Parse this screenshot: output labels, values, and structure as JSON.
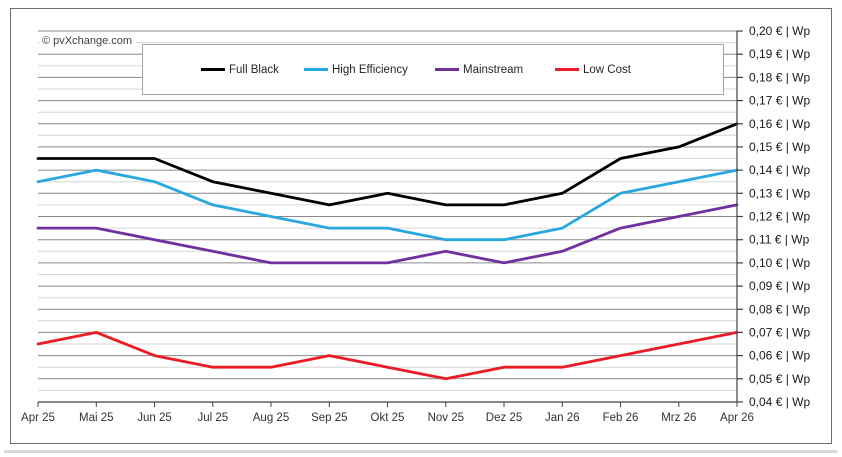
{
  "page": {
    "copyright": "© pvXchange.com"
  },
  "chart_data": {
    "type": "line",
    "title": "",
    "xlabel": "",
    "ylabel": "€ | Wp",
    "categories": [
      "Apr 25",
      "Mai 25",
      "Jun 25",
      "Jul 25",
      "Aug 25",
      "Sep 25",
      "Okt 25",
      "Nov 25",
      "Dez 25",
      "Jan 26",
      "Feb 26",
      "Mrz 26",
      "Apr 26"
    ],
    "series": [
      {
        "name": "Full Black",
        "color": "#000000",
        "values": [
          0.145,
          0.145,
          0.145,
          0.135,
          0.13,
          0.125,
          0.13,
          0.125,
          0.125,
          0.13,
          0.145,
          0.15,
          0.16
        ]
      },
      {
        "name": "High Efficiency",
        "color": "#29A8E0",
        "values": [
          0.135,
          0.14,
          0.135,
          0.125,
          0.12,
          0.115,
          0.115,
          0.11,
          0.11,
          0.115,
          0.13,
          0.135,
          0.14
        ]
      },
      {
        "name": "Mainstream",
        "color": "#7030A0",
        "values": [
          0.115,
          0.115,
          0.11,
          0.105,
          0.1,
          0.1,
          0.1,
          0.105,
          0.1,
          0.105,
          0.115,
          0.12,
          0.125
        ]
      },
      {
        "name": "Low Cost",
        "color": "#ED1C24",
        "values": [
          0.065,
          0.07,
          0.06,
          0.055,
          0.055,
          0.06,
          0.055,
          0.05,
          0.055,
          0.055,
          0.06,
          0.065,
          0.07
        ]
      }
    ],
    "ylim": [
      0.04,
      0.2
    ],
    "y_major_step": 0.01,
    "y_minor_step": 0.005,
    "y_tick_labels": [
      "0,20 € | Wp",
      "0,19 € | Wp",
      "0,18 € | Wp",
      "0,17 € | Wp",
      "0,16 € | Wp",
      "0,15 € | Wp",
      "0,14 € | Wp",
      "0,13 € | Wp",
      "0,12 € | Wp",
      "0,11 € | Wp",
      "0,10 € | Wp",
      "0,09 € | Wp",
      "0,08 € | Wp",
      "0,07 € | Wp",
      "0,06 € | Wp",
      "0,05 € | Wp",
      "0,04 € | Wp"
    ],
    "axis_side": "right",
    "grid": "horizontal major+minor",
    "legend_position": "top-center",
    "grid_major_color": "#8a8a8a",
    "grid_minor_color": "#d6d6d6",
    "axis_color": "#404040"
  }
}
